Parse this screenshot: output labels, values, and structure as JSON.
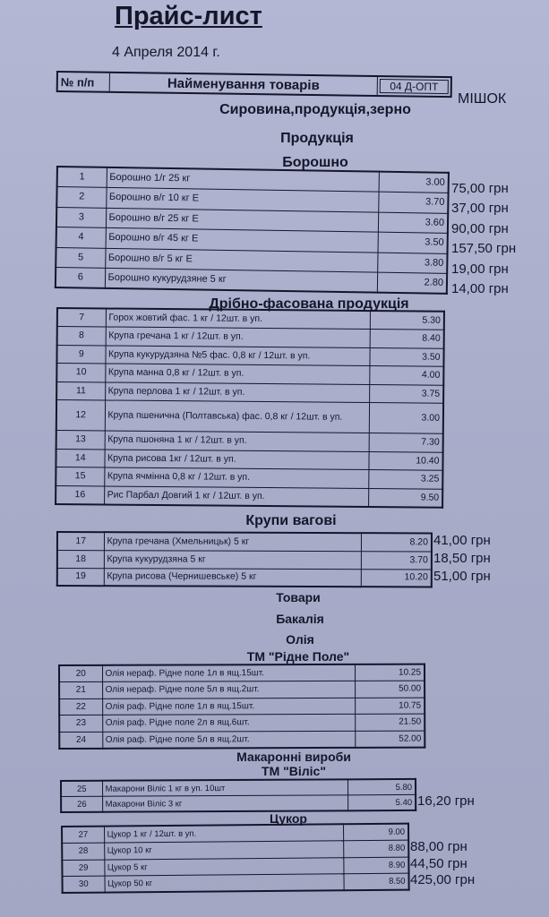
{
  "title": "Прайс-лист",
  "date": "4 Апреля 2014 г.",
  "header": {
    "num": "№ п/п",
    "name": "Найменування товарів",
    "price": "04 Д-ОПТ",
    "extra": "МІШОК"
  },
  "headings": {
    "raw": "Сировина,продукція,зерно",
    "products": "Продукція",
    "flour": "Борошно",
    "packaged": "Дрібно-фасована продукція",
    "weighted": "Крупи вагові",
    "goods": "Товари",
    "grocery": "Бакалія",
    "oil": "Олія",
    "oil_brand": "ТМ  \"Рідне Поле\"",
    "pasta": "Макаронні вироби",
    "pasta_brand": "ТМ  \"Віліс\"",
    "sugar": "Цукор"
  },
  "tables": {
    "flour": [
      {
        "n": "1",
        "name": "Борошно 1/г 25 кг",
        "price": "3.00",
        "bag": "75,00 грн"
      },
      {
        "n": "2",
        "name": "Борошно в/г 10 кг Е",
        "price": "3.70",
        "bag": "37,00 грн"
      },
      {
        "n": "3",
        "name": "Борошно в/г 25 кг Е",
        "price": "3.60",
        "bag": "90,00 грн"
      },
      {
        "n": "4",
        "name": "Борошно в/г 45 кг  Е",
        "price": "3.50",
        "bag": "157,50 грн"
      },
      {
        "n": "5",
        "name": "Борошно в/г 5 кг Е",
        "price": "3.80",
        "bag": "19,00 грн"
      },
      {
        "n": "6",
        "name": "Борошно кукурудзяне  5 кг",
        "price": "2.80",
        "bag": "14,00 грн"
      }
    ],
    "packaged": [
      {
        "n": "7",
        "name": "Горох жовтий фас. 1 кг  / 12шт. в уп.",
        "price": "5.30"
      },
      {
        "n": "8",
        "name": "Крупа гречана 1 кг / 12шт. в уп.",
        "price": "8.40"
      },
      {
        "n": "9",
        "name": "Крупа кукурудзяна №5 фас. 0,8 кг / 12шт. в уп.",
        "price": "3.50"
      },
      {
        "n": "10",
        "name": "Крупа манна  0,8 кг / 12шт. в уп.",
        "price": "4.00"
      },
      {
        "n": "11",
        "name": "Крупа перлова 1 кг / 12шт. в уп.",
        "price": "3.75"
      },
      {
        "n": "12",
        "name": "Крупа пшенична (Полтавська)  фас. 0,8 кг / 12шт. в уп.",
        "price": "3.00"
      },
      {
        "n": "13",
        "name": "Крупа пшоняна  1 кг / 12шт. в уп.",
        "price": "7.30"
      },
      {
        "n": "14",
        "name": "Крупа рисова  1кг / 12шт. в уп.",
        "price": "10.40"
      },
      {
        "n": "15",
        "name": "Крупа ячмінна   0,8 кг / 12шт. в уп.",
        "price": "3.25"
      },
      {
        "n": "16",
        "name": "Рис  Парбал Довгий  1 кг / 12шт. в уп.",
        "price": "9.50"
      }
    ],
    "weighted": [
      {
        "n": "17",
        "name": "Крупа гречана  (Хмельницьк) 5 кг",
        "price": "8.20",
        "bag": "41,00 грн"
      },
      {
        "n": "18",
        "name": "Крупа кукурудзяна  5 кг",
        "price": "3.70",
        "bag": "18,50 грн"
      },
      {
        "n": "19",
        "name": "Крупа рисова  (Чернишевське)    5 кг",
        "price": "10.20",
        "bag": "51,00 грн"
      }
    ],
    "oil": [
      {
        "n": "20",
        "name": "Олія нераф. Рідне поле  1л в ящ.15шт.",
        "price": "10.25"
      },
      {
        "n": "21",
        "name": "Олія нераф. Рідне поле  5л в ящ.2шт.",
        "price": "50.00"
      },
      {
        "n": "22",
        "name": "Олія раф. Рідне поле  1л в ящ.15шт.",
        "price": "10.75"
      },
      {
        "n": "23",
        "name": "Олія раф. Рідне поле  2л в ящ.6шт.",
        "price": "21.50"
      },
      {
        "n": "24",
        "name": "Олія раф. Рідне поле  5л в ящ.2шт.",
        "price": "52.00"
      }
    ],
    "pasta": [
      {
        "n": "25",
        "name": "Макарони  Віліс  1 кг в уп. 10шт",
        "price": "5.80"
      },
      {
        "n": "26",
        "name": "Макарони Віліс 3 кг",
        "price": "5.40",
        "bag": "16,20 грн"
      }
    ],
    "sugar": [
      {
        "n": "27",
        "name": "Цукор 1 кг / 12шт. в уп.",
        "price": "9.00"
      },
      {
        "n": "28",
        "name": "Цукор 10 кг",
        "price": "8.80",
        "bag": "88,00 грн"
      },
      {
        "n": "29",
        "name": "Цукор 5 кг",
        "price": "8.90",
        "bag": "44,50 грн"
      },
      {
        "n": "30",
        "name": "Цукор 50 кг",
        "price": "8.50",
        "bag": "425,00 грн"
      }
    ]
  }
}
